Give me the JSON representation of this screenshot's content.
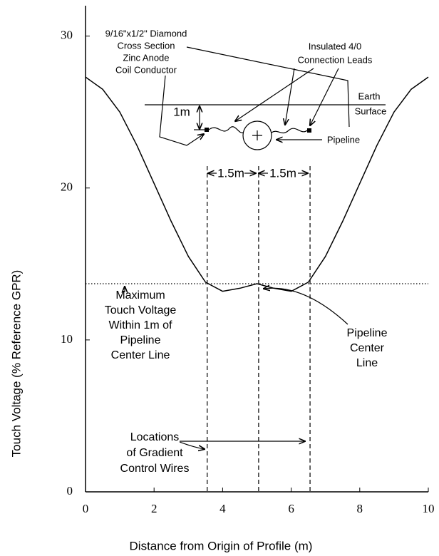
{
  "chart_data": {
    "type": "line",
    "xlabel": "Distance from Origin of Profile (m)",
    "ylabel": "Touch Voltage (% Reference GPR)",
    "x": [
      0,
      0.5,
      1,
      1.5,
      2,
      2.5,
      3,
      3.5,
      4,
      4.5,
      5,
      5.5,
      6,
      6.5,
      7,
      7.5,
      8,
      8.5,
      9,
      9.5,
      10
    ],
    "values": [
      27.3,
      26.5,
      25,
      22.8,
      20.3,
      17.8,
      15.5,
      13.8,
      13.2,
      13.4,
      13.7,
      13.4,
      13.2,
      13.8,
      15.5,
      17.8,
      20.3,
      22.8,
      25,
      26.5,
      27.3
    ],
    "color": "#000000",
    "xlim": [
      0,
      10
    ],
    "ylim": [
      0,
      32
    ],
    "xticks": [
      0,
      2,
      4,
      6,
      8,
      10
    ],
    "yticks": [
      0,
      10,
      20,
      30
    ],
    "reference_line": 13.7,
    "vlines": [
      3.55,
      5.05,
      6.55
    ],
    "annotations": [
      [
        "9/16\"x1/2\" Diamond",
        "Cross Section",
        "Zinc Anode",
        "Coil Conductor"
      ],
      [
        "Insulated 4/0",
        "Connection Leads"
      ],
      [
        "Earth",
        "Surface"
      ],
      [
        "1m"
      ],
      [
        "Pipeline"
      ],
      [
        "1.5m",
        "1.5m"
      ],
      [
        "Maximum",
        "Touch Voltage",
        "Within 1m of",
        "Pipeline",
        "Center Line"
      ],
      [
        "Pipeline",
        "Center",
        "Line"
      ],
      [
        "Locations",
        "of Gradient",
        "Control Wires"
      ]
    ]
  }
}
